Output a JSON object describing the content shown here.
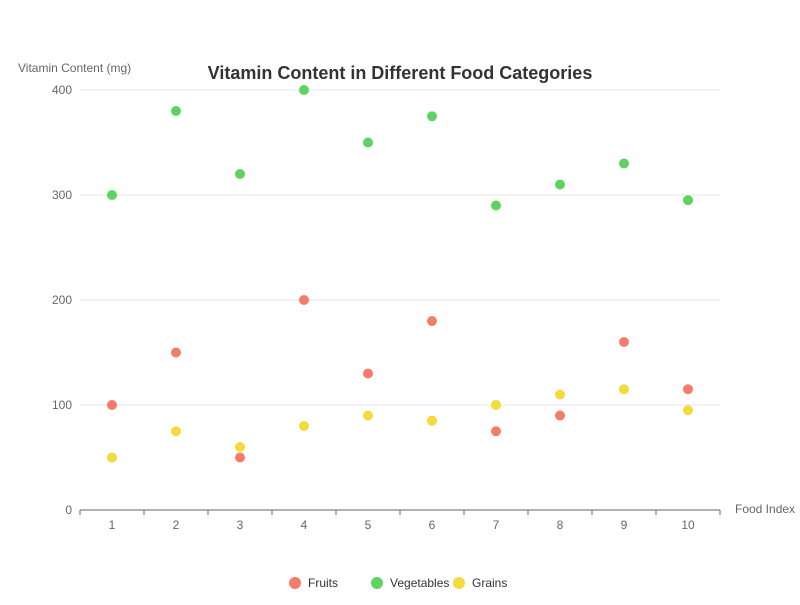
{
  "chart_data": {
    "type": "scatter",
    "title": "Vitamin Content in Different Food Categories",
    "xlabel": "Food Index",
    "ylabel": "Vitamin Content (mg)",
    "x": [
      1,
      2,
      3,
      4,
      5,
      6,
      7,
      8,
      9,
      10
    ],
    "xlim": [
      0.5,
      10.5
    ],
    "ylim": [
      0,
      400
    ],
    "yticks": [
      0,
      100,
      200,
      300,
      400
    ],
    "grid": true,
    "legend_position": "bottom-center",
    "series": [
      {
        "name": "Fruits",
        "color": "#f47c6b",
        "values": [
          100,
          150,
          50,
          200,
          130,
          180,
          75,
          90,
          160,
          115
        ]
      },
      {
        "name": "Vegetables",
        "color": "#5fd35f",
        "values": [
          300,
          380,
          320,
          400,
          350,
          375,
          290,
          310,
          330,
          295
        ]
      },
      {
        "name": "Grains",
        "color": "#f6d93b",
        "values": [
          50,
          75,
          60,
          80,
          90,
          85,
          100,
          110,
          115,
          95
        ]
      }
    ]
  }
}
